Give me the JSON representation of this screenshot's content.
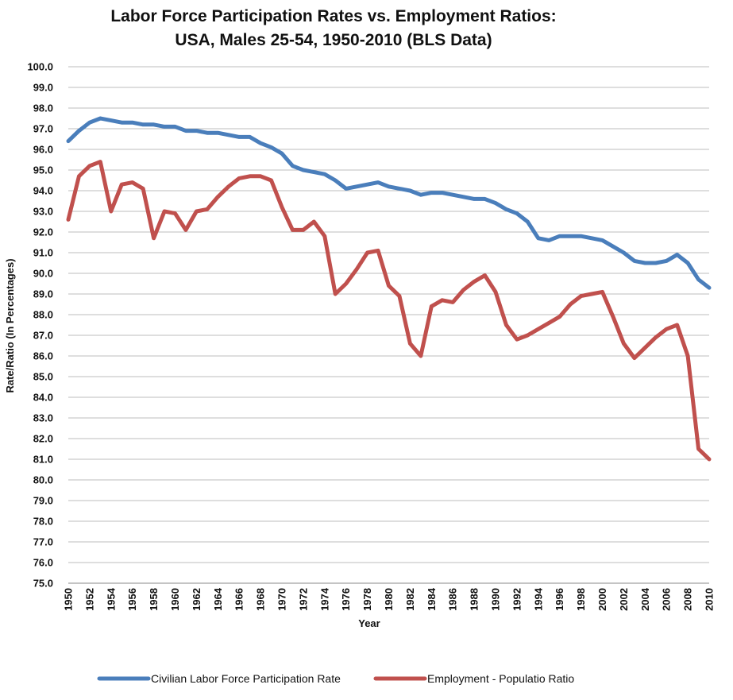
{
  "chart_data": {
    "type": "line",
    "title_line1": "Labor Force Participation Rates vs. Employment Ratios:",
    "title_line2": "USA, Males 25-54, 1950-2010 (BLS Data)",
    "xlabel": "Year",
    "ylabel": "Rate/Ratio (In Percentages)",
    "ylim": [
      75,
      100
    ],
    "xlim": [
      1950,
      2010
    ],
    "y_ticks": [
      "75.0",
      "76.0",
      "77.0",
      "78.0",
      "79.0",
      "80.0",
      "81.0",
      "82.0",
      "83.0",
      "84.0",
      "85.0",
      "86.0",
      "87.0",
      "88.0",
      "89.0",
      "90.0",
      "91.0",
      "92.0",
      "93.0",
      "94.0",
      "95.0",
      "96.0",
      "97.0",
      "98.0",
      "99.0",
      "100.0"
    ],
    "x_ticks": [
      "1950",
      "1952",
      "1954",
      "1956",
      "1958",
      "1960",
      "1962",
      "1964",
      "1966",
      "1968",
      "1970",
      "1972",
      "1974",
      "1976",
      "1978",
      "1980",
      "1982",
      "1984",
      "1986",
      "1988",
      "1990",
      "1992",
      "1994",
      "1996",
      "1998",
      "2000",
      "2002",
      "2004",
      "2006",
      "2008",
      "2010"
    ],
    "grid": true,
    "legend_position": "bottom",
    "x": [
      1950,
      1951,
      1952,
      1953,
      1954,
      1955,
      1956,
      1957,
      1958,
      1959,
      1960,
      1961,
      1962,
      1963,
      1964,
      1965,
      1966,
      1967,
      1968,
      1969,
      1970,
      1971,
      1972,
      1973,
      1974,
      1975,
      1976,
      1977,
      1978,
      1979,
      1980,
      1981,
      1982,
      1983,
      1984,
      1985,
      1986,
      1987,
      1988,
      1989,
      1990,
      1991,
      1992,
      1993,
      1994,
      1995,
      1996,
      1997,
      1998,
      1999,
      2000,
      2001,
      2002,
      2003,
      2004,
      2005,
      2006,
      2007,
      2008,
      2009,
      2010
    ],
    "series": [
      {
        "name": "Civilian Labor Force Participation Rate",
        "color": "#4a7ebb",
        "values": [
          96.4,
          96.9,
          97.3,
          97.5,
          97.4,
          97.3,
          97.3,
          97.2,
          97.2,
          97.1,
          97.1,
          96.9,
          96.9,
          96.8,
          96.8,
          96.7,
          96.6,
          96.6,
          96.3,
          96.1,
          95.8,
          95.2,
          95.0,
          94.9,
          94.8,
          94.5,
          94.1,
          94.2,
          94.3,
          94.4,
          94.2,
          94.1,
          94.0,
          93.8,
          93.9,
          93.9,
          93.8,
          93.7,
          93.6,
          93.6,
          93.4,
          93.1,
          92.9,
          92.5,
          91.7,
          91.6,
          91.8,
          91.8,
          91.8,
          91.7,
          91.6,
          91.3,
          91.0,
          90.6,
          90.5,
          90.5,
          90.6,
          90.9,
          90.5,
          89.7,
          89.3
        ]
      },
      {
        "name": "Employment - Populatio Ratio",
        "color": "#c0504d",
        "values": [
          92.6,
          94.7,
          95.2,
          95.4,
          93.0,
          94.3,
          94.4,
          94.1,
          91.7,
          93.0,
          92.9,
          92.1,
          93.0,
          93.1,
          93.7,
          94.2,
          94.6,
          94.7,
          94.7,
          94.5,
          93.2,
          92.1,
          92.1,
          92.5,
          91.8,
          89.0,
          89.5,
          90.2,
          91.0,
          91.1,
          89.4,
          88.9,
          86.6,
          86.0,
          88.4,
          88.7,
          88.6,
          89.2,
          89.6,
          89.9,
          89.1,
          87.5,
          86.8,
          87.0,
          87.3,
          87.6,
          87.9,
          88.5,
          88.9,
          89.0,
          89.1,
          87.9,
          86.6,
          85.9,
          86.4,
          86.9,
          87.3,
          87.5,
          86.0,
          81.5,
          81.0
        ]
      }
    ]
  }
}
